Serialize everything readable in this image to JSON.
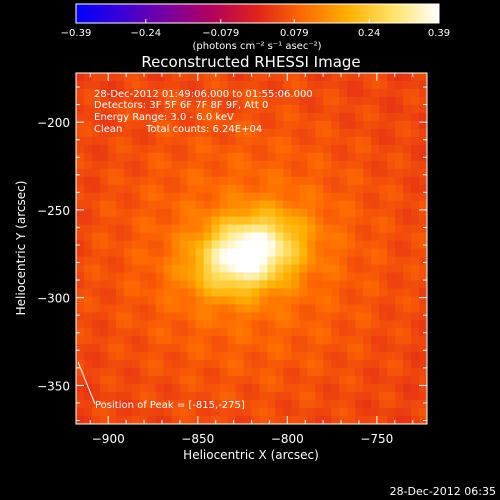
{
  "chart_data": {
    "type": "heatmap",
    "title": "Reconstructed RHESSI Image",
    "xlabel": "Heliocentric X (arcsec)",
    "ylabel": "Heliocentric Y (arcsec)",
    "xlim": [
      -918,
      -722
    ],
    "ylim": [
      -372,
      -172
    ],
    "xticks": [
      -900,
      -850,
      -800,
      -750
    ],
    "yticks": [
      -350,
      -300,
      -250,
      -200
    ],
    "xtick_labels": [
      "−900",
      "−850",
      "−800",
      "−750"
    ],
    "ytick_labels": [
      "−350",
      "−300",
      "−250",
      "−200"
    ],
    "colorbar": {
      "min": -0.39,
      "max": 0.39,
      "ticks": [
        -0.39,
        -0.24,
        -0.079,
        0.079,
        0.24,
        0.39
      ],
      "tick_labels": [
        "−0.39",
        "−0.24",
        "−0.079",
        "0.079",
        "0.24",
        "0.39"
      ],
      "label": "(photons cm⁻² s⁻¹ asec⁻²)",
      "colors": [
        "#0000ff",
        "#3b00d6",
        "#7a00a0",
        "#b3005c",
        "#e0231a",
        "#ff6a00",
        "#ffb000",
        "#ffe36a",
        "#ffffff"
      ]
    },
    "source": {
      "center": [
        -822,
        -275
      ],
      "sigma": [
        20,
        14
      ],
      "peak_value": 0.39,
      "peak": [
        -815,
        -275
      ]
    },
    "grid": false
  },
  "annotations": {
    "time_range": "28-Dec-2012 01:49:06.000 to 01:55:06.000",
    "detectors": "Detectors: 3F 5F 6F 7F 8F 9F, Att 0",
    "energy": "Energy Range: 3.0 - 6.0 keV",
    "clean": "Clean",
    "total_counts": "Total counts: 6.24E+04",
    "peak_position": "Position of Peak = [-815,-275]"
  },
  "footer": {
    "timestamp": "28-Dec-2012 06:35"
  }
}
